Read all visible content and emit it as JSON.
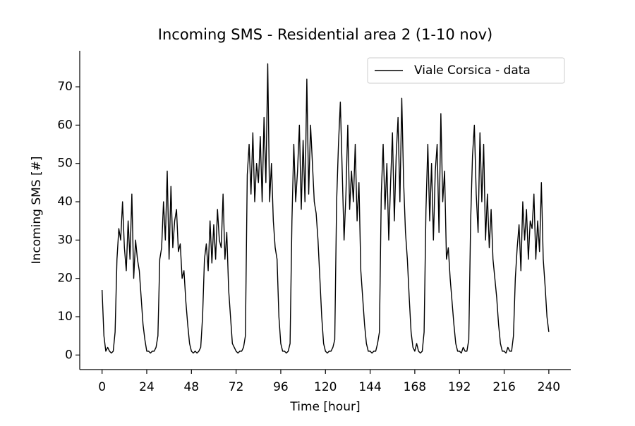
{
  "chart_data": {
    "type": "line",
    "title": "Incoming SMS - Residential area 2 (1-10 nov)",
    "x_label": "Time [hour]",
    "y_label": "Incoming SMS [#]",
    "x": [
      0,
      1,
      2,
      3,
      4,
      5,
      6,
      7,
      8,
      9,
      10,
      11,
      12,
      13,
      14,
      15,
      16,
      17,
      18,
      19,
      20,
      21,
      22,
      23,
      24,
      25,
      26,
      27,
      28,
      29,
      30,
      31,
      32,
      33,
      34,
      35,
      36,
      37,
      38,
      39,
      40,
      41,
      42,
      43,
      44,
      45,
      46,
      47,
      48,
      49,
      50,
      51,
      52,
      53,
      54,
      55,
      56,
      57,
      58,
      59,
      60,
      61,
      62,
      63,
      64,
      65,
      66,
      67,
      68,
      69,
      70,
      71,
      72,
      73,
      74,
      75,
      76,
      77,
      78,
      79,
      80,
      81,
      82,
      83,
      84,
      85,
      86,
      87,
      88,
      89,
      90,
      91,
      92,
      93,
      94,
      95,
      96,
      97,
      98,
      99,
      100,
      101,
      102,
      103,
      104,
      105,
      106,
      107,
      108,
      109,
      110,
      111,
      112,
      113,
      114,
      115,
      116,
      117,
      118,
      119,
      120,
      121,
      122,
      123,
      124,
      125,
      126,
      127,
      128,
      129,
      130,
      131,
      132,
      133,
      134,
      135,
      136,
      137,
      138,
      139,
      140,
      141,
      142,
      143,
      144,
      145,
      146,
      147,
      148,
      149,
      150,
      151,
      152,
      153,
      154,
      155,
      156,
      157,
      158,
      159,
      160,
      161,
      162,
      163,
      164,
      165,
      166,
      167,
      168,
      169,
      170,
      171,
      172,
      173,
      174,
      175,
      176,
      177,
      178,
      179,
      180,
      181,
      182,
      183,
      184,
      185,
      186,
      187,
      188,
      189,
      190,
      191,
      192,
      193,
      194,
      195,
      196,
      197,
      198,
      199,
      200,
      201,
      202,
      203,
      204,
      205,
      206,
      207,
      208,
      209,
      210,
      211,
      212,
      213,
      214,
      215,
      216,
      217,
      218,
      219,
      220,
      221,
      222,
      223,
      224,
      225,
      226,
      227,
      228,
      229,
      230,
      231,
      232,
      233,
      234,
      235,
      236,
      237,
      238,
      239,
      240
    ],
    "series": [
      {
        "name": "Viale Corsica - data",
        "color": "#000000",
        "values": [
          17,
          5,
          1,
          2,
          1,
          0.5,
          1,
          6,
          25,
          33,
          30,
          40,
          28,
          22,
          35,
          25,
          42,
          20,
          30,
          25,
          22,
          15,
          8,
          4,
          1,
          1,
          0.5,
          1,
          1,
          2,
          5,
          25,
          28,
          40,
          30,
          48,
          25,
          44,
          28,
          35,
          38,
          27,
          29,
          20,
          22,
          14,
          8,
          3,
          1,
          0.5,
          1,
          0.5,
          1,
          2,
          10,
          25,
          29,
          22,
          35,
          24,
          34,
          25,
          38,
          30,
          28,
          42,
          25,
          32,
          17,
          10,
          3,
          2,
          1,
          0.5,
          1,
          1,
          2,
          5,
          47,
          55,
          42,
          58,
          40,
          50,
          45,
          57,
          40,
          62,
          45,
          76,
          40,
          50,
          35,
          28,
          25,
          10,
          3,
          1,
          1,
          0.5,
          1,
          3,
          35,
          55,
          40,
          48,
          60,
          38,
          56,
          40,
          72,
          42,
          60,
          50,
          40,
          37,
          30,
          20,
          10,
          3,
          1,
          0.5,
          1,
          1,
          2,
          4,
          40,
          55,
          66,
          48,
          30,
          42,
          60,
          38,
          48,
          40,
          55,
          35,
          45,
          22,
          15,
          8,
          3,
          1,
          1,
          0.5,
          1,
          1,
          3,
          6,
          42,
          55,
          38,
          50,
          30,
          45,
          58,
          35,
          52,
          62,
          40,
          67,
          45,
          32,
          25,
          15,
          6,
          2,
          1,
          3,
          1,
          0.5,
          1,
          6,
          38,
          55,
          35,
          50,
          30,
          48,
          55,
          32,
          63,
          40,
          48,
          25,
          28,
          20,
          14,
          8,
          3,
          1,
          1,
          0.5,
          2,
          1,
          1,
          4,
          35,
          52,
          60,
          42,
          32,
          58,
          40,
          55,
          30,
          42,
          28,
          38,
          25,
          20,
          15,
          8,
          3,
          1,
          1,
          0.5,
          2,
          1,
          1,
          5,
          20,
          28,
          34,
          22,
          40,
          30,
          38,
          25,
          35,
          33,
          42,
          25,
          35,
          27,
          45,
          25,
          18,
          10,
          6
        ]
      }
    ],
    "xlim": [
      -12,
      251.8
    ],
    "ylim": [
      -3.8,
      79.4
    ],
    "xticks": [
      0,
      24,
      48,
      72,
      96,
      120,
      144,
      168,
      192,
      216,
      240
    ],
    "yticks": [
      0,
      10,
      20,
      30,
      40,
      50,
      60,
      70
    ],
    "legend": "upper right",
    "grid": false
  }
}
